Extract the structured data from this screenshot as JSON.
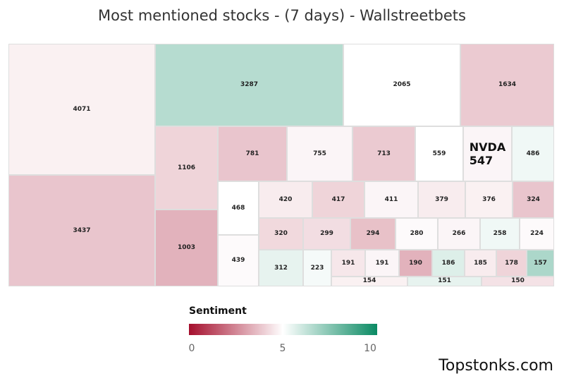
{
  "chart_data": {
    "type": "treemap",
    "title": "Most mentioned stocks - (7 days) - Wallstreetbets",
    "color_metric": "Sentiment",
    "color_scale": {
      "min": 0,
      "mid": 5,
      "max": 10,
      "low_color": "#a50f2d",
      "mid_color": "#ffffff",
      "high_color": "#0a8a63"
    },
    "tiles": [
      {
        "label": "4071",
        "value": 4071,
        "sentiment": 4.7
      },
      {
        "label": "3437",
        "value": 3437,
        "sentiment": 3.8
      },
      {
        "label": "3287",
        "value": 3287,
        "sentiment": 6.5
      },
      {
        "label": "2065",
        "value": 2065,
        "sentiment": 5.0
      },
      {
        "label": "1634",
        "value": 1634,
        "sentiment": 3.9
      },
      {
        "label": "1106",
        "value": 1106,
        "sentiment": 4.1
      },
      {
        "label": "1003",
        "value": 1003,
        "sentiment": 3.4
      },
      {
        "label": "781",
        "value": 781,
        "sentiment": 3.8
      },
      {
        "label": "755",
        "value": 755,
        "sentiment": 4.8
      },
      {
        "label": "713",
        "value": 713,
        "sentiment": 3.9
      },
      {
        "label": "559",
        "value": 559,
        "sentiment": 5.0
      },
      {
        "label": "NVDA\n547",
        "value": 547,
        "sentiment": 4.8
      },
      {
        "label": "486",
        "value": 486,
        "sentiment": 5.3
      },
      {
        "label": "468",
        "value": 468,
        "sentiment": 5.0
      },
      {
        "label": "439",
        "value": 439,
        "sentiment": 4.9
      },
      {
        "label": "420",
        "value": 420,
        "sentiment": 4.6
      },
      {
        "label": "417",
        "value": 417,
        "sentiment": 4.1
      },
      {
        "label": "411",
        "value": 411,
        "sentiment": 4.8
      },
      {
        "label": "379",
        "value": 379,
        "sentiment": 4.6
      },
      {
        "label": "376",
        "value": 376,
        "sentiment": 4.7
      },
      {
        "label": "324",
        "value": 324,
        "sentiment": 3.8
      },
      {
        "label": "320",
        "value": 320,
        "sentiment": 4.2
      },
      {
        "label": "312",
        "value": 312,
        "sentiment": 5.5
      },
      {
        "label": "299",
        "value": 299,
        "sentiment": 4.3
      },
      {
        "label": "294",
        "value": 294,
        "sentiment": 3.7
      },
      {
        "label": "280",
        "value": 280,
        "sentiment": 4.9
      },
      {
        "label": "266",
        "value": 266,
        "sentiment": 4.8
      },
      {
        "label": "258",
        "value": 258,
        "sentiment": 5.3
      },
      {
        "label": "224",
        "value": 224,
        "sentiment": 4.9
      },
      {
        "label": "223",
        "value": 223,
        "sentiment": 5.2
      },
      {
        "label": "191",
        "value": 191,
        "sentiment": 4.5
      },
      {
        "label": "191",
        "value": 191,
        "sentiment": 4.8
      },
      {
        "label": "190",
        "value": 190,
        "sentiment": 3.4
      },
      {
        "label": "186",
        "value": 186,
        "sentiment": 5.7
      },
      {
        "label": "185",
        "value": 185,
        "sentiment": 4.6
      },
      {
        "label": "178",
        "value": 178,
        "sentiment": 4.1
      },
      {
        "label": "157",
        "value": 157,
        "sentiment": 6.7
      },
      {
        "label": "154",
        "value": 154,
        "sentiment": 4.7
      },
      {
        "label": "151",
        "value": 151,
        "sentiment": 5.5
      },
      {
        "label": "150",
        "value": 150,
        "sentiment": 4.4
      }
    ]
  },
  "legend": {
    "title": "Sentiment",
    "ticks": [
      "0",
      "5",
      "10"
    ]
  },
  "brand": "Topstonks.com"
}
